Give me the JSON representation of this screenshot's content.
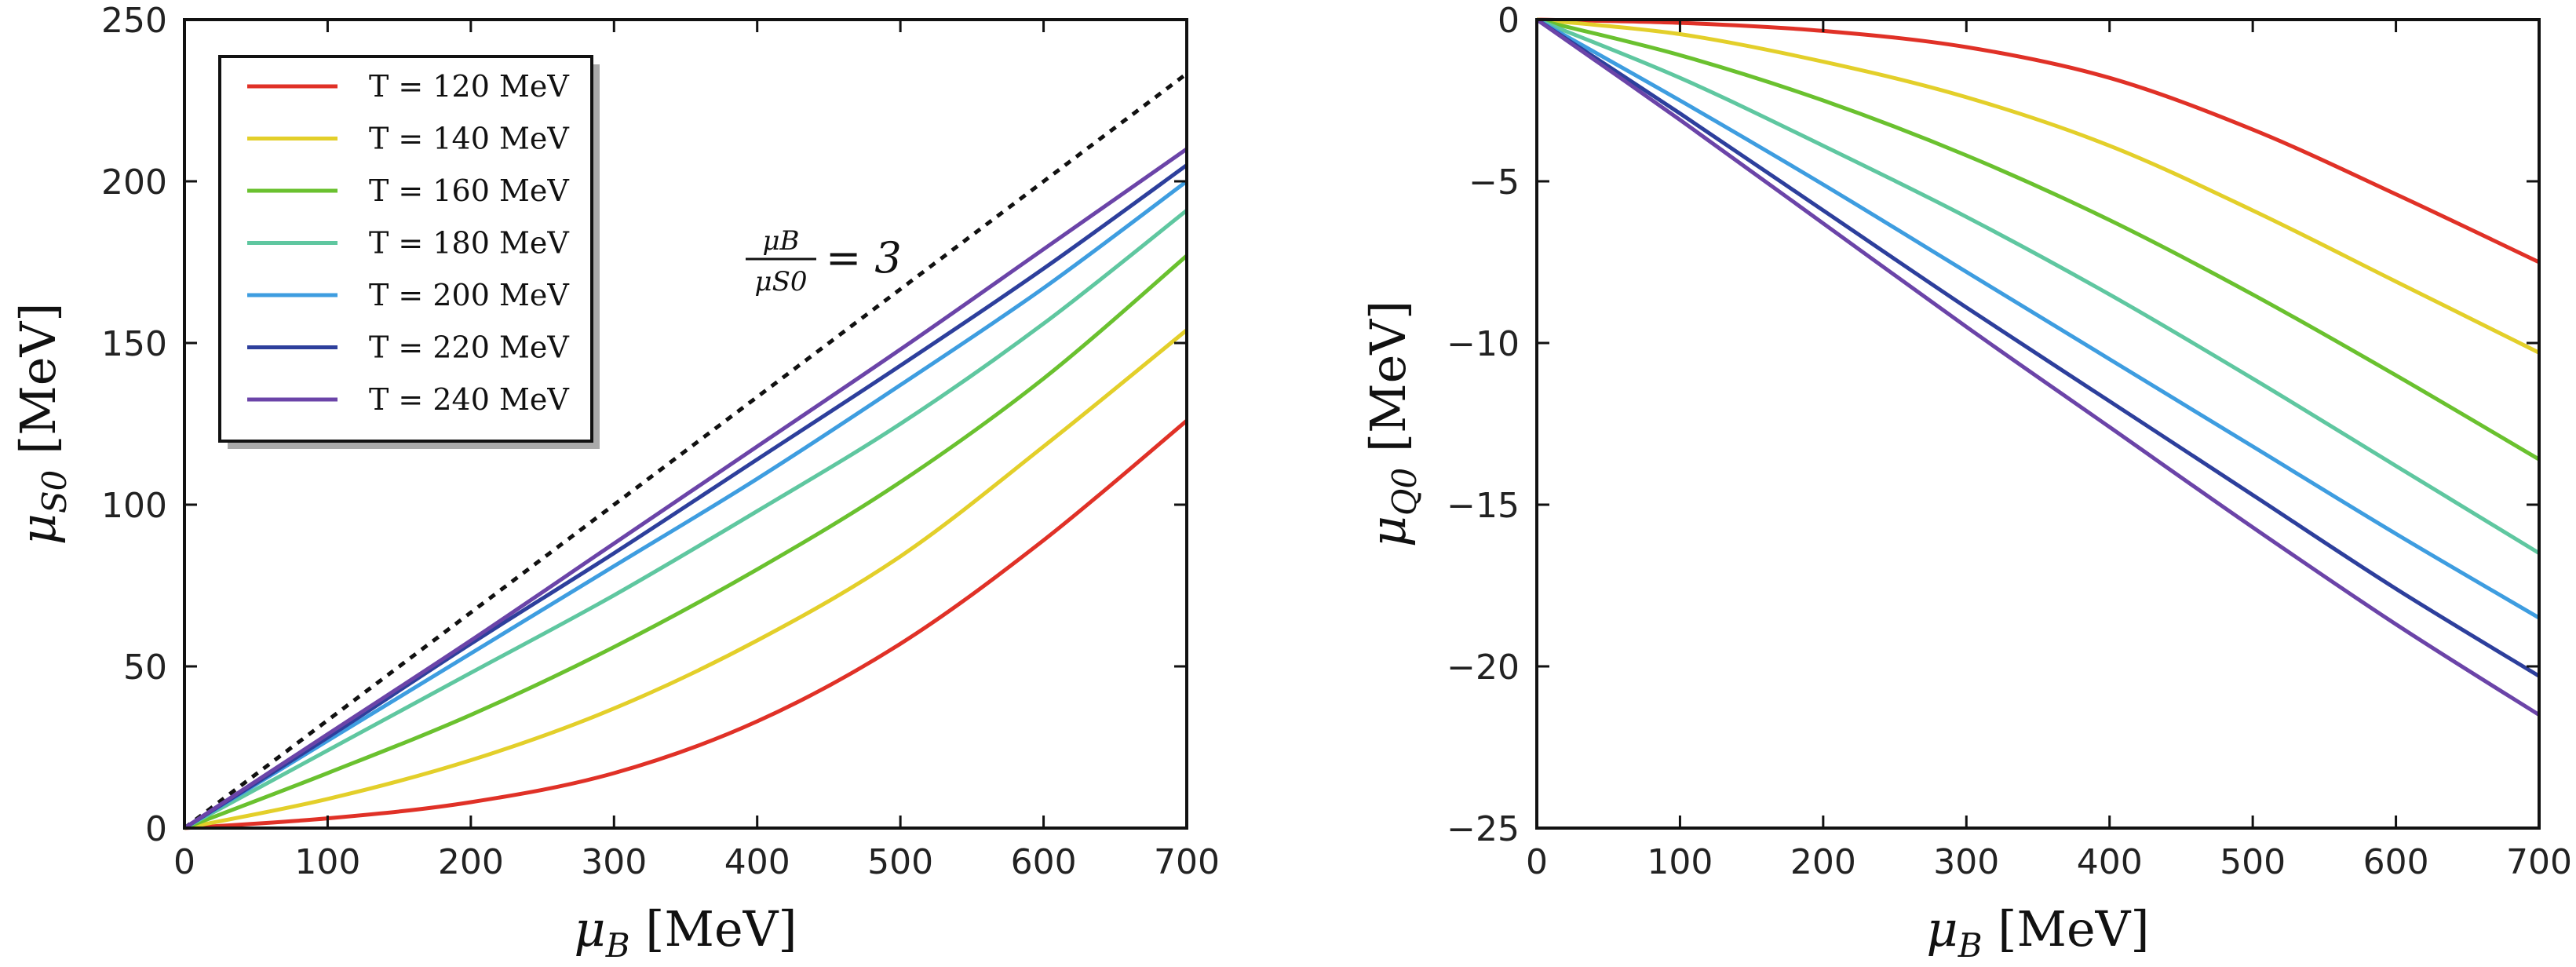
{
  "chart_data": [
    {
      "type": "line",
      "xlabel": "μ_B [MeV]",
      "ylabel": "μ_S0 [MeV]",
      "xlim": [
        0,
        700
      ],
      "ylim": [
        0,
        250
      ],
      "xticks": [
        0,
        100,
        200,
        300,
        400,
        500,
        600,
        700
      ],
      "yticks": [
        0,
        50,
        100,
        150,
        200,
        250
      ],
      "xtick_labels": [
        "0",
        "100",
        "200",
        "300",
        "400",
        "500",
        "600",
        "700"
      ],
      "ytick_labels": [
        "0",
        "50",
        "100",
        "150",
        "200",
        "250"
      ],
      "legend_position": "top-left",
      "annotation": {
        "text": "μ_B / μ_S0 = 3",
        "numerator": "μB",
        "denominator": "μS0",
        "rhs": "= 3"
      },
      "reference_line": {
        "name": "μ_B/μ_S0 = 3",
        "style": "dotted",
        "color": "#111111",
        "x": [
          0,
          700
        ],
        "values": [
          0,
          233.3
        ]
      },
      "x": [
        0,
        100,
        200,
        300,
        400,
        500,
        600,
        700
      ],
      "series": [
        {
          "name": "T = 120 MeV",
          "color": "#e03127",
          "values": [
            0,
            3,
            8,
            17,
            33,
            57,
            89,
            126
          ]
        },
        {
          "name": "T = 140 MeV",
          "color": "#e3cf2a",
          "values": [
            0,
            9,
            21,
            37,
            58,
            84,
            118,
            154
          ]
        },
        {
          "name": "T = 160 MeV",
          "color": "#6ac12f",
          "values": [
            0,
            17,
            35,
            56,
            80,
            107,
            139,
            177
          ]
        },
        {
          "name": "T = 180 MeV",
          "color": "#5fc7a0",
          "values": [
            0,
            24,
            48,
            72,
            98,
            125,
            156,
            191
          ]
        },
        {
          "name": "T = 200 MeV",
          "color": "#3e9de0",
          "values": [
            0,
            27,
            54,
            81,
            108,
            137,
            167,
            200
          ]
        },
        {
          "name": "T = 220 MeV",
          "color": "#2d3f9c",
          "values": [
            0,
            28,
            57,
            85,
            114,
            143,
            173,
            205
          ]
        },
        {
          "name": "T = 240 MeV",
          "color": "#6b44a8",
          "values": [
            0,
            29,
            58,
            88,
            118,
            148,
            179,
            210
          ]
        }
      ]
    },
    {
      "type": "line",
      "xlabel": "μ_B [MeV]",
      "ylabel": "μ_Q0 [MeV]",
      "xlim": [
        0,
        700
      ],
      "ylim": [
        -25,
        0
      ],
      "xticks": [
        0,
        100,
        200,
        300,
        400,
        500,
        600,
        700
      ],
      "yticks": [
        0,
        -5,
        -10,
        -15,
        -20,
        -25
      ],
      "xtick_labels": [
        "0",
        "100",
        "200",
        "300",
        "400",
        "500",
        "600",
        "700"
      ],
      "ytick_labels": [
        "0",
        "−5",
        "−10",
        "−15",
        "−20",
        "−25"
      ],
      "x": [
        0,
        100,
        200,
        300,
        400,
        500,
        600,
        700
      ],
      "series": [
        {
          "name": "T = 120 MeV",
          "color": "#e03127",
          "values": [
            0,
            -0.1,
            -0.35,
            -0.85,
            -1.8,
            -3.4,
            -5.4,
            -7.5
          ]
        },
        {
          "name": "T = 140 MeV",
          "color": "#e3cf2a",
          "values": [
            0,
            -0.45,
            -1.3,
            -2.4,
            -3.9,
            -5.9,
            -8.1,
            -10.3
          ]
        },
        {
          "name": "T = 160 MeV",
          "color": "#6ac12f",
          "values": [
            0,
            -1.1,
            -2.5,
            -4.2,
            -6.2,
            -8.5,
            -11.0,
            -13.6
          ]
        },
        {
          "name": "T = 180 MeV",
          "color": "#5fc7a0",
          "values": [
            0,
            -1.8,
            -3.9,
            -6.1,
            -8.5,
            -11.1,
            -13.8,
            -16.5
          ]
        },
        {
          "name": "T = 200 MeV",
          "color": "#3e9de0",
          "values": [
            0,
            -2.5,
            -5.1,
            -7.8,
            -10.5,
            -13.2,
            -15.9,
            -18.5
          ]
        },
        {
          "name": "T = 220 MeV",
          "color": "#2d3f9c",
          "values": [
            0,
            -2.9,
            -5.9,
            -8.9,
            -11.8,
            -14.7,
            -17.6,
            -20.3
          ]
        },
        {
          "name": "T = 240 MeV",
          "color": "#6b44a8",
          "values": [
            0,
            -3.1,
            -6.3,
            -9.5,
            -12.6,
            -15.7,
            -18.7,
            -21.5
          ]
        }
      ]
    }
  ]
}
